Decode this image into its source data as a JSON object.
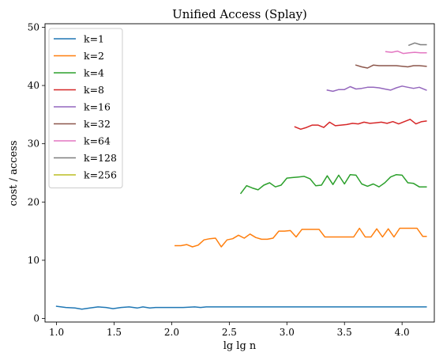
{
  "chart_data": {
    "type": "line",
    "title": "Unified Access (Splay)",
    "xlabel": "lg lg n",
    "ylabel": "cost / access",
    "xlim": [
      0.9,
      4.28
    ],
    "ylim": [
      -0.6,
      50.6
    ],
    "xticks": [
      "1.0",
      "1.5",
      "2.0",
      "2.5",
      "3.0",
      "3.5",
      "4.0"
    ],
    "xtick_values": [
      1.0,
      1.5,
      2.0,
      2.5,
      3.0,
      3.5,
      4.0
    ],
    "yticks": [
      "0",
      "10",
      "20",
      "30",
      "40",
      "50"
    ],
    "ytick_values": [
      0,
      10,
      20,
      30,
      40,
      50
    ],
    "grid": false,
    "legend_position": "top-left",
    "series": [
      {
        "name": "k=1",
        "color": "#1f77b4",
        "x": [
          1.0,
          1.08,
          1.16,
          1.22,
          1.29,
          1.36,
          1.43,
          1.49,
          1.56,
          1.63,
          1.7,
          1.75,
          1.81,
          1.86,
          1.9,
          2.0,
          2.1,
          2.2,
          2.25,
          2.3,
          2.5,
          3.0,
          3.5,
          4.0,
          4.21
        ],
        "y": [
          2.1,
          1.9,
          1.8,
          1.6,
          1.8,
          2.0,
          1.9,
          1.7,
          1.9,
          2.0,
          1.8,
          2.0,
          1.8,
          1.9,
          1.9,
          1.9,
          1.9,
          2.0,
          1.9,
          2.0,
          2.0,
          2.0,
          2.0,
          2.0,
          2.0
        ]
      },
      {
        "name": "k=2",
        "color": "#ff7f0e",
        "x": [
          2.03,
          2.08,
          2.13,
          2.18,
          2.23,
          2.28,
          2.33,
          2.38,
          2.43,
          2.48,
          2.53,
          2.58,
          2.63,
          2.68,
          2.73,
          2.78,
          2.83,
          2.88,
          2.93,
          2.98,
          3.03,
          3.08,
          3.13,
          3.18,
          3.23,
          3.28,
          3.33,
          3.38,
          3.43,
          3.48,
          3.53,
          3.58,
          3.63,
          3.68,
          3.73,
          3.78,
          3.83,
          3.88,
          3.93,
          3.98,
          4.03,
          4.08,
          4.13,
          4.18,
          4.21
        ],
        "y": [
          12.5,
          12.5,
          12.7,
          12.3,
          12.6,
          13.5,
          13.7,
          13.8,
          12.3,
          13.5,
          13.7,
          14.3,
          13.8,
          14.5,
          13.9,
          13.6,
          13.6,
          13.8,
          15.0,
          15.0,
          15.1,
          14.0,
          15.3,
          15.3,
          15.3,
          15.3,
          14.0,
          14.0,
          14.0,
          14.0,
          14.0,
          14.0,
          15.5,
          14.0,
          14.0,
          15.4,
          14.0,
          15.4,
          14.0,
          15.5,
          15.5,
          15.5,
          15.5,
          14.1,
          14.1
        ]
      },
      {
        "name": "k=4",
        "color": "#2ca02c",
        "x": [
          2.6,
          2.65,
          2.7,
          2.75,
          2.8,
          2.85,
          2.9,
          2.95,
          3.0,
          3.05,
          3.1,
          3.15,
          3.2,
          3.25,
          3.3,
          3.35,
          3.4,
          3.45,
          3.5,
          3.55,
          3.6,
          3.65,
          3.7,
          3.75,
          3.8,
          3.85,
          3.9,
          3.95,
          4.0,
          4.05,
          4.1,
          4.15,
          4.21
        ],
        "y": [
          21.5,
          22.8,
          22.4,
          22.1,
          22.9,
          23.3,
          22.6,
          22.9,
          24.1,
          24.2,
          24.3,
          24.4,
          24.0,
          22.8,
          22.9,
          24.5,
          23.0,
          24.6,
          23.1,
          24.7,
          24.6,
          23.1,
          22.7,
          23.1,
          22.6,
          23.3,
          24.3,
          24.7,
          24.6,
          23.3,
          23.2,
          22.6,
          22.6
        ]
      },
      {
        "name": "k=8",
        "color": "#d62728",
        "x": [
          3.07,
          3.12,
          3.17,
          3.22,
          3.27,
          3.32,
          3.37,
          3.42,
          3.47,
          3.52,
          3.57,
          3.62,
          3.67,
          3.72,
          3.77,
          3.82,
          3.87,
          3.92,
          3.97,
          4.02,
          4.07,
          4.12,
          4.17,
          4.21
        ],
        "y": [
          32.9,
          32.5,
          32.8,
          33.2,
          33.2,
          32.8,
          33.7,
          33.1,
          33.2,
          33.3,
          33.5,
          33.4,
          33.7,
          33.5,
          33.6,
          33.7,
          33.5,
          33.8,
          33.4,
          33.8,
          34.2,
          33.4,
          33.8,
          33.9
        ]
      },
      {
        "name": "k=16",
        "color": "#9467bd",
        "x": [
          3.35,
          3.4,
          3.45,
          3.5,
          3.55,
          3.6,
          3.65,
          3.7,
          3.75,
          3.8,
          3.85,
          3.9,
          3.95,
          4.0,
          4.05,
          4.1,
          4.15,
          4.21
        ],
        "y": [
          39.2,
          39.0,
          39.3,
          39.3,
          39.8,
          39.4,
          39.5,
          39.7,
          39.7,
          39.6,
          39.4,
          39.2,
          39.6,
          39.9,
          39.7,
          39.5,
          39.7,
          39.2
        ]
      },
      {
        "name": "k=32",
        "color": "#8c564b",
        "x": [
          3.6,
          3.65,
          3.7,
          3.75,
          3.8,
          3.85,
          3.9,
          3.95,
          4.0,
          4.05,
          4.1,
          4.15,
          4.21
        ],
        "y": [
          43.5,
          43.2,
          43.0,
          43.5,
          43.4,
          43.4,
          43.4,
          43.4,
          43.3,
          43.2,
          43.4,
          43.4,
          43.3
        ]
      },
      {
        "name": "k=64",
        "color": "#e377c2",
        "x": [
          3.86,
          3.91,
          3.96,
          4.01,
          4.06,
          4.11,
          4.16,
          4.21
        ],
        "y": [
          45.8,
          45.7,
          45.9,
          45.5,
          45.6,
          45.7,
          45.6,
          45.6
        ]
      },
      {
        "name": "k=128",
        "color": "#7f7f7f",
        "x": [
          4.06,
          4.11,
          4.16,
          4.21
        ],
        "y": [
          46.9,
          47.3,
          47.0,
          47.0
        ]
      },
      {
        "name": "k=256",
        "color": "#bcbd22",
        "x": [],
        "y": []
      }
    ]
  }
}
